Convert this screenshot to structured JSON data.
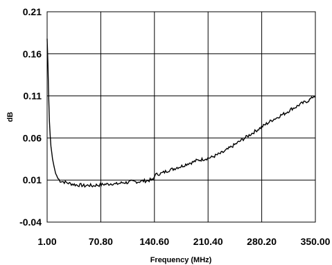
{
  "chart_data": {
    "type": "line",
    "title": "",
    "xlabel": "Frequency (MHz)",
    "ylabel": "dB",
    "xlim": [
      1.0,
      350.0
    ],
    "ylim": [
      -0.04,
      0.21
    ],
    "x_ticks": [
      "1.00",
      "70.80",
      "140.60",
      "210.40",
      "280.20",
      "350.00"
    ],
    "y_ticks": [
      "-0.04",
      "0.01",
      "0.06",
      "0.11",
      "0.16",
      "0.21"
    ],
    "grid": true,
    "legend": "none",
    "line_color": "#000000",
    "series": [
      {
        "x": [
          1,
          2,
          3,
          4,
          5,
          6,
          8,
          10,
          12,
          15,
          18,
          22,
          26,
          30,
          35,
          40,
          45,
          50,
          55,
          60,
          65,
          70,
          75,
          80,
          85,
          90,
          95,
          100,
          105,
          110,
          115,
          120,
          125,
          130,
          135,
          139,
          141,
          145,
          150,
          155,
          160,
          165,
          170,
          175,
          180,
          185,
          190,
          195,
          200,
          205,
          210,
          215,
          220,
          225,
          230,
          235,
          240,
          245,
          250,
          255,
          260,
          265,
          270,
          275,
          280,
          285,
          290,
          295,
          300,
          305,
          310,
          315,
          320,
          325,
          330,
          335,
          340,
          345,
          348,
          350
        ],
        "y": [
          0.178,
          0.15,
          0.11,
          0.08,
          0.063,
          0.05,
          0.035,
          0.026,
          0.018,
          0.012,
          0.009,
          0.008,
          0.007,
          0.006,
          0.005,
          0.004,
          0.004,
          0.003,
          0.004,
          0.003,
          0.004,
          0.004,
          0.005,
          0.005,
          0.006,
          0.005,
          0.006,
          0.007,
          0.007,
          0.008,
          0.008,
          0.008,
          0.009,
          0.009,
          0.01,
          0.01,
          0.016,
          0.017,
          0.018,
          0.02,
          0.022,
          0.023,
          0.025,
          0.026,
          0.028,
          0.03,
          0.031,
          0.033,
          0.034,
          0.035,
          0.036,
          0.037,
          0.039,
          0.041,
          0.043,
          0.046,
          0.049,
          0.052,
          0.055,
          0.058,
          0.061,
          0.064,
          0.067,
          0.07,
          0.073,
          0.076,
          0.079,
          0.082,
          0.084,
          0.087,
          0.089,
          0.092,
          0.095,
          0.097,
          0.1,
          0.102,
          0.104,
          0.107,
          0.11,
          0.109
        ]
      }
    ]
  }
}
